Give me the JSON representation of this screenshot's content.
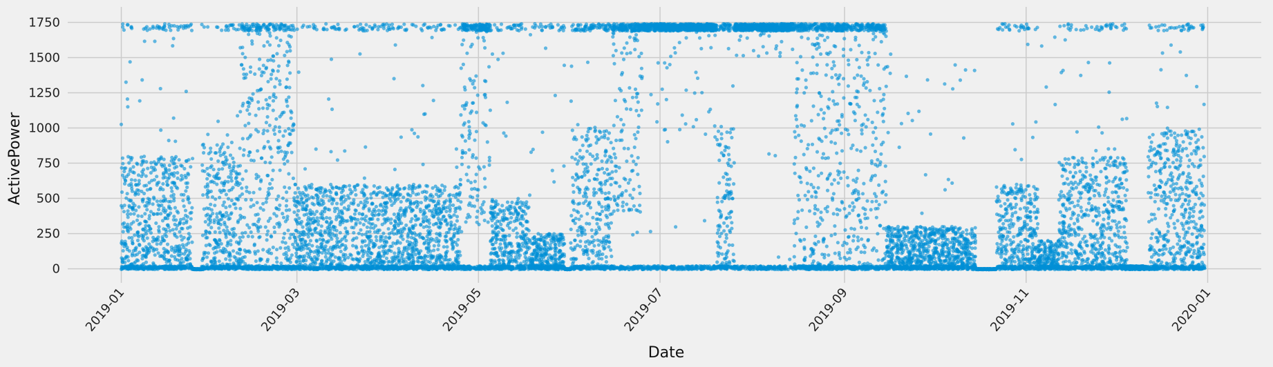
{
  "chart_data": {
    "type": "scatter",
    "title": "",
    "xlabel": "Date",
    "ylabel": "ActivePower",
    "x_axis": {
      "type": "date",
      "range": [
        "2018-12-14",
        "2020-01-19"
      ],
      "ticks": [
        "2019-01-01",
        "2019-03-01",
        "2019-05-01",
        "2019-07-01",
        "2019-09-01",
        "2019-11-01",
        "2020-01-01"
      ],
      "tick_labels": [
        "2019-01",
        "2019-03",
        "2019-05",
        "2019-07",
        "2019-09",
        "2019-11",
        "2020-01"
      ],
      "tick_rotation_deg": 50
    },
    "y_axis": {
      "range": [
        -100,
        1860
      ],
      "ticks": [
        0,
        250,
        500,
        750,
        1000,
        1250,
        1500,
        1750
      ],
      "tick_labels": [
        "0",
        "250",
        "500",
        "750",
        "1000",
        "1250",
        "1500",
        "1750"
      ]
    },
    "grid": true,
    "legend": "none",
    "marker_color": "#008fd5",
    "marker_opacity": 0.6,
    "background": "#f0f0f0",
    "grid_color": "#cbcbcb",
    "series": [
      {
        "points_estimate": "dense scatter of 10-minute turbine readings, 2019-01-01 to 2019-12-31, values 0-1780",
        "segments": [
          {
            "start": "2019-01-01",
            "end": "2019-01-25",
            "typical": [
              0,
              800
            ],
            "frequency_at_cap": "low"
          },
          {
            "start": "2019-01-25",
            "end": "2019-01-28",
            "typical": [
              0,
              0
            ],
            "frequency_at_cap": "none"
          },
          {
            "start": "2019-01-28",
            "end": "2019-02-10",
            "typical": [
              0,
              900
            ],
            "frequency_at_cap": "low"
          },
          {
            "start": "2019-02-10",
            "end": "2019-02-28",
            "typical": [
              0,
              1700
            ],
            "frequency_at_cap": "medium"
          },
          {
            "start": "2019-02-28",
            "end": "2019-04-25",
            "typical": [
              0,
              600
            ],
            "frequency_at_cap": "low"
          },
          {
            "start": "2019-04-25",
            "end": "2019-05-05",
            "typical": [
              300,
              1730
            ],
            "frequency_at_cap": "high"
          },
          {
            "start": "2019-05-05",
            "end": "2019-05-18",
            "typical": [
              0,
              500
            ],
            "frequency_at_cap": "low"
          },
          {
            "start": "2019-05-18",
            "end": "2019-05-30",
            "typical": [
              0,
              250
            ],
            "frequency_at_cap": "low"
          },
          {
            "start": "2019-05-30",
            "end": "2019-06-01",
            "typical": [
              0,
              0
            ],
            "frequency_at_cap": "none"
          },
          {
            "start": "2019-06-01",
            "end": "2019-06-15",
            "typical": [
              0,
              1000
            ],
            "frequency_at_cap": "medium"
          },
          {
            "start": "2019-06-15",
            "end": "2019-06-25",
            "typical": [
              400,
              1730
            ],
            "frequency_at_cap": "high"
          },
          {
            "start": "2019-06-25",
            "end": "2019-07-20",
            "typical": [
              900,
              1730
            ],
            "frequency_at_cap": "very-high"
          },
          {
            "start": "2019-07-20",
            "end": "2019-07-26",
            "typical": [
              0,
              1000
            ],
            "frequency_at_cap": "medium"
          },
          {
            "start": "2019-07-26",
            "end": "2019-08-15",
            "typical": [
              1500,
              1740
            ],
            "frequency_at_cap": "very-high"
          },
          {
            "start": "2019-08-15",
            "end": "2019-09-15",
            "typical": [
              0,
              1730
            ],
            "frequency_at_cap": "high"
          },
          {
            "start": "2019-09-15",
            "end": "2019-10-15",
            "typical": [
              0,
              300
            ],
            "frequency_at_cap": "none"
          },
          {
            "start": "2019-10-15",
            "end": "2019-10-22",
            "typical": [
              0,
              0
            ],
            "frequency_at_cap": "none"
          },
          {
            "start": "2019-10-22",
            "end": "2019-11-05",
            "typical": [
              0,
              600
            ],
            "frequency_at_cap": "low"
          },
          {
            "start": "2019-11-05",
            "end": "2019-11-12",
            "typical": [
              0,
              200
            ],
            "frequency_at_cap": "none"
          },
          {
            "start": "2019-11-12",
            "end": "2019-12-05",
            "typical": [
              0,
              800
            ],
            "frequency_at_cap": "low"
          },
          {
            "start": "2019-12-05",
            "end": "2019-12-12",
            "typical": [
              0,
              20
            ],
            "frequency_at_cap": "none"
          },
          {
            "start": "2019-12-12",
            "end": "2019-12-31",
            "typical": [
              0,
              1000
            ],
            "frequency_at_cap": "low"
          }
        ]
      }
    ]
  }
}
